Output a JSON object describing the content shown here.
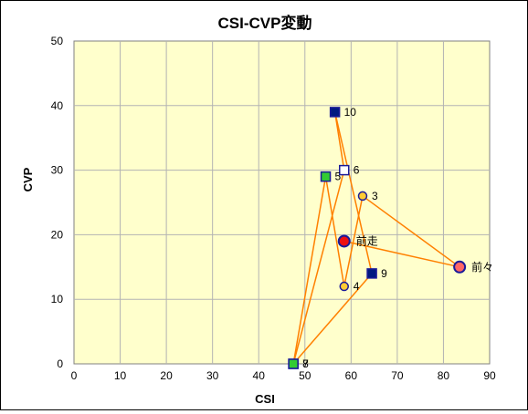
{
  "chart_data": {
    "type": "scatter",
    "title": "CSI-CVP変動",
    "xlabel": "CSI",
    "ylabel": "CVP",
    "xlim": [
      0,
      90
    ],
    "ylim": [
      0,
      50
    ],
    "x_ticks": [
      "0",
      "10",
      "20",
      "30",
      "40",
      "50",
      "60",
      "70",
      "80",
      "90"
    ],
    "y_ticks": [
      "0",
      "10",
      "20",
      "30",
      "40",
      "50"
    ],
    "grid": true,
    "plot_background": "#ffffcc",
    "line_color": "#ff8000",
    "points": [
      {
        "label": "前々",
        "x": 83.5,
        "y": 15,
        "marker": "circle-large",
        "fill": "#ff6666"
      },
      {
        "label": "前走",
        "x": 58.5,
        "y": 19,
        "marker": "circle-large",
        "fill": "#ee1111"
      },
      {
        "label": "3",
        "x": 62.5,
        "y": 26,
        "marker": "circle",
        "fill": "#ffcc33"
      },
      {
        "label": "4",
        "x": 58.5,
        "y": 12,
        "marker": "circle",
        "fill": "#ffcc33"
      },
      {
        "label": "5",
        "x": 54.5,
        "y": 29,
        "marker": "square",
        "fill": "#33cc33"
      },
      {
        "label": "6",
        "x": 58.5,
        "y": 30,
        "marker": "square",
        "fill": "#ffffff"
      },
      {
        "label": "7",
        "x": 47.5,
        "y": 0,
        "marker": "square",
        "fill": "#33cc33"
      },
      {
        "label": "8",
        "x": 47.5,
        "y": 0,
        "marker": "square",
        "fill": "#33cc33"
      },
      {
        "label": "9",
        "x": 64.5,
        "y": 14,
        "marker": "square",
        "fill": "#001a80"
      },
      {
        "label": "10",
        "x": 56.5,
        "y": 39,
        "marker": "square",
        "fill": "#001a80"
      }
    ],
    "path_order": [
      "前走",
      "前々",
      "3",
      "4",
      "5",
      "7",
      "9",
      "10",
      "6",
      "8"
    ]
  }
}
